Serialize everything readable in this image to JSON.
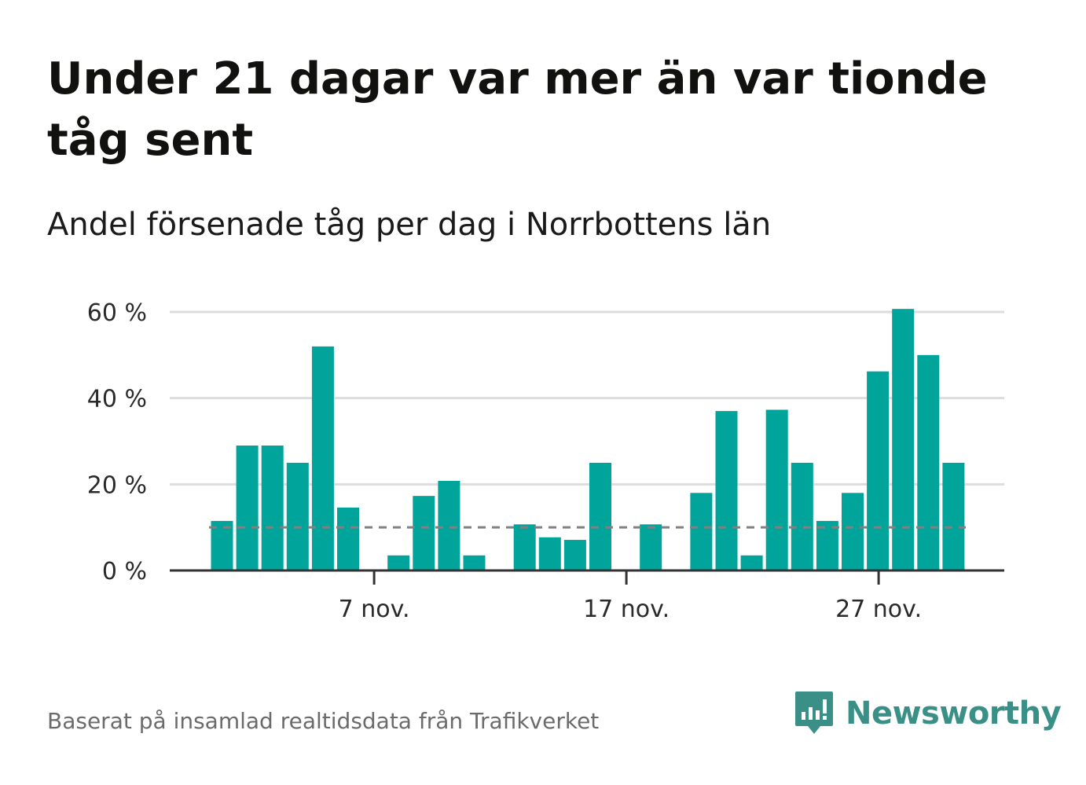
{
  "title": "Under 21 dagar var mer än var tionde tåg sent",
  "subtitle": "Andel försenade tåg per dag i Norrbottens län",
  "footer": "Baserat på insamlad realtidsdata från Trafikverket",
  "brand": {
    "name": "Newsworthy",
    "icon": "newsworthy-logo-icon",
    "color": "#3a8f86"
  },
  "colors": {
    "bar": "#00a49a",
    "grid": "#dddddd",
    "axis": "#333333",
    "reference": "#808080"
  },
  "chart_data": {
    "type": "bar",
    "title": "Under 21 dagar var mer än var tionde tåg sent",
    "subtitle": "Andel försenade tåg per dag i Norrbottens län",
    "xlabel": "",
    "ylabel": "",
    "unit": "%",
    "x_start_day": 1,
    "x": [
      1,
      2,
      3,
      4,
      5,
      6,
      7,
      8,
      9,
      10,
      11,
      12,
      13,
      14,
      15,
      16,
      17,
      18,
      19,
      20,
      21,
      22,
      23,
      24,
      25,
      26,
      27,
      28,
      29,
      30
    ],
    "values": [
      11.5,
      29,
      29,
      25,
      52,
      14.6,
      0,
      3.5,
      17.3,
      20.8,
      3.5,
      0,
      10.7,
      7.7,
      7.1,
      25,
      0,
      10.7,
      0,
      18,
      37,
      3.5,
      37.3,
      25,
      11.5,
      18,
      46.2,
      60.7,
      50,
      25
    ],
    "reference_line": 10,
    "ylim": [
      0,
      65
    ],
    "yticks": [
      0,
      20,
      40,
      60
    ],
    "ytick_labels": [
      "0 %",
      "20 %",
      "40 %",
      "60 %"
    ],
    "xticks": [
      7,
      17,
      27
    ],
    "xtick_labels": [
      "7 nov.",
      "17 nov.",
      "27 nov."
    ],
    "grid": true,
    "legend": "none"
  }
}
